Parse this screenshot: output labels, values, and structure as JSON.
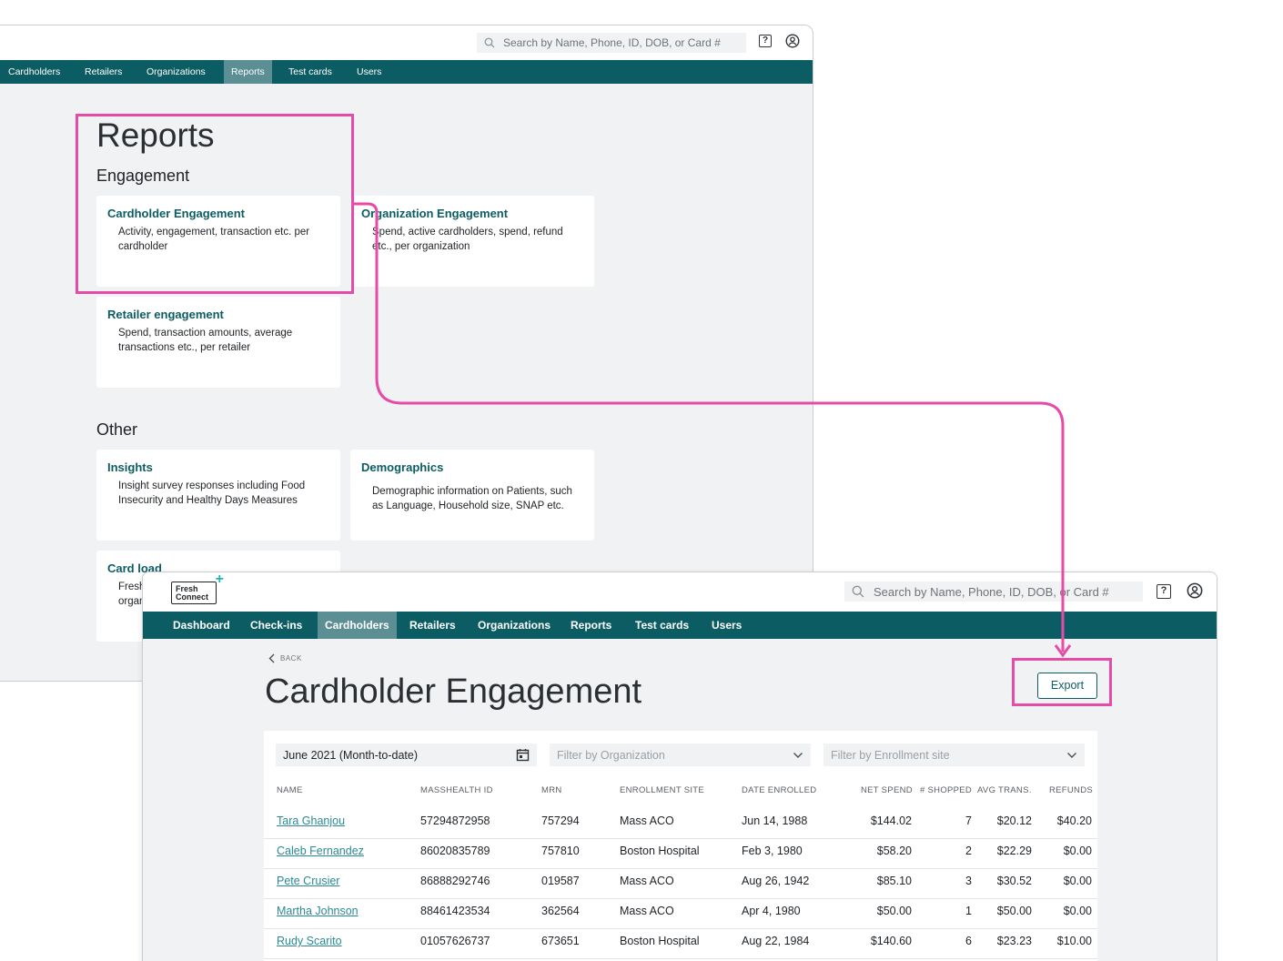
{
  "reports_window": {
    "search_placeholder": "Search by Name, Phone, ID, DOB, or Card #",
    "nav": [
      "Cardholders",
      "Retailers",
      "Organizations",
      "Reports",
      "Test cards",
      "Users"
    ],
    "active_nav": "Reports",
    "title": "Reports",
    "sections": [
      {
        "heading": "Engagement",
        "cards": [
          {
            "title": "Cardholder Engagement",
            "desc": "Activity, engagement, transaction etc. per cardholder"
          },
          {
            "title": "Organization Engagement",
            "desc": "Spend, active cardholders, spend, refund etc., per organization"
          },
          {
            "title": "Retailer engagement",
            "desc": "Spend, transaction amounts, average transactions etc., per retailer"
          }
        ]
      },
      {
        "heading": "Other",
        "cards": [
          {
            "title": "Insights",
            "desc": "Insight survey responses including Food Insecurity and Healthy Days Measures"
          },
          {
            "title": "Demographics",
            "desc": "Demographic information on Patients, such as Language, Household size, SNAP etc."
          },
          {
            "title": "Card load",
            "desc": "Fresh organ"
          }
        ]
      }
    ]
  },
  "engagement_window": {
    "logo": {
      "line1": "Fresh",
      "line2": "Connect",
      "plus": "+"
    },
    "search_placeholder": "Search by Name, Phone, ID, DOB, or Card #",
    "nav": [
      "Dashboard",
      "Check-ins",
      "Cardholders",
      "Retailers",
      "Organizations",
      "Reports",
      "Test cards",
      "Users"
    ],
    "active_nav": "Cardholders",
    "back_label": "BACK",
    "title": "Cardholder Engagement",
    "export_label": "Export",
    "filters": {
      "date": "June 2021 (Month-to-date)",
      "organization_placeholder": "Filter by Organization",
      "site_placeholder": "Filter by Enrollment site"
    },
    "columns": [
      "NAME",
      "MASSHEALTH ID",
      "MRN",
      "ENROLLMENT SITE",
      "DATE ENROLLED",
      "NET SPEND",
      "# SHOPPED",
      "AVG TRANS.",
      "REFUNDS"
    ],
    "rows": [
      [
        "Tara Ghanjou",
        "57294872958",
        "757294",
        "Mass ACO",
        "Jun 14, 1988",
        "$144.02",
        "7",
        "$20.12",
        "$40.20"
      ],
      [
        "Caleb Fernandez",
        "86020835789",
        "757810",
        "Boston Hospital",
        "Feb 3, 1980",
        "$58.20",
        "2",
        "$22.29",
        "$0.00"
      ],
      [
        "Pete Crusier",
        "86888292746",
        "019587",
        "Mass ACO",
        "Aug 26, 1942",
        "$85.10",
        "3",
        "$30.52",
        "$0.00"
      ],
      [
        "Martha Johnson",
        "88461423534",
        "362564",
        "Mass ACO",
        "Apr 4, 1980",
        "$50.00",
        "1",
        "$50.00",
        "$0.00"
      ],
      [
        "Rudy Scarito",
        "01057626737",
        "673651",
        "Boston Hospital",
        "Aug 22, 1984",
        "$140.60",
        "6",
        "$23.23",
        "$10.00"
      ]
    ]
  },
  "colors": {
    "primary": "#0c5d63",
    "nav_active": "#5c8f94",
    "highlight": "#e64ba7",
    "link": "#2a8a94"
  }
}
